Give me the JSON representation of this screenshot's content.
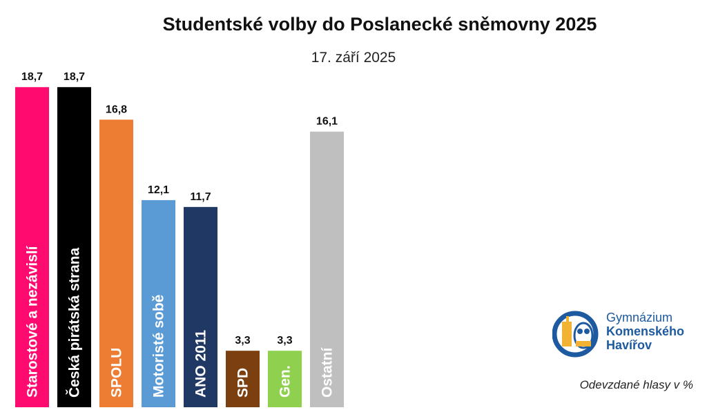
{
  "chart_data": {
    "type": "bar",
    "title": "Studentské volby do Poslanecké sněmovny 2025",
    "subtitle": "17. září 2025",
    "categories": [
      "Starostové a nezávislí",
      "Česká pirátská strana",
      "SPOLU",
      "Motoristé sobě",
      "ANO 2011",
      "SPD",
      "Gen.",
      "Ostatní"
    ],
    "values": [
      18.7,
      18.7,
      16.8,
      12.1,
      11.7,
      3.3,
      3.3,
      16.1
    ],
    "value_labels": [
      "18,7",
      "18,7",
      "16,8",
      "12,1",
      "11,7",
      "3,3",
      "3,3",
      "16,1"
    ],
    "colors": [
      "#ff0a6e",
      "#000000",
      "#ee7d34",
      "#5b9bd5",
      "#1f3864",
      "#7b3f10",
      "#8fd14f",
      "#bfbfbf"
    ],
    "ylim": [
      0,
      20
    ],
    "grid": false,
    "note": "Odevzdané hlasy v %"
  },
  "logo": {
    "line1": "Gymnázium",
    "line2": "Komenského",
    "line3": "Havířov",
    "icon": "school-owl-logo-icon"
  }
}
